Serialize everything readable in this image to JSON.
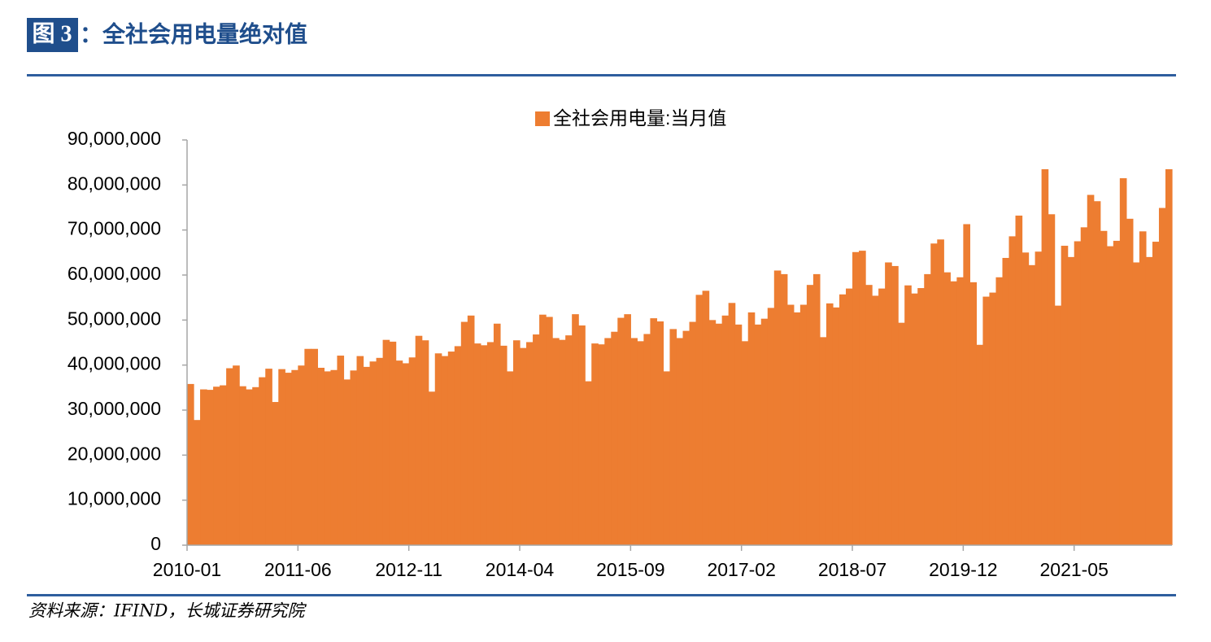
{
  "header": {
    "label": "图 3",
    "title": "：全社会用电量绝对值"
  },
  "chart_data": {
    "type": "bar",
    "categories": [
      "2010-01",
      null,
      null,
      null,
      null,
      null,
      null,
      null,
      null,
      null,
      null,
      null,
      null,
      null,
      null,
      null,
      null,
      "2011-06",
      null,
      null,
      null,
      null,
      null,
      null,
      null,
      null,
      null,
      null,
      null,
      null,
      null,
      null,
      null,
      null,
      "2012-11",
      null,
      null,
      null,
      null,
      null,
      null,
      null,
      null,
      null,
      null,
      null,
      null,
      null,
      null,
      null,
      null,
      "2014-04",
      null,
      null,
      null,
      null,
      null,
      null,
      null,
      null,
      null,
      null,
      null,
      null,
      null,
      null,
      null,
      null,
      "2015-09",
      null,
      null,
      null,
      null,
      null,
      null,
      null,
      null,
      null,
      null,
      null,
      null,
      null,
      null,
      null,
      null,
      "2017-02",
      null,
      null,
      null,
      null,
      null,
      null,
      null,
      null,
      null,
      null,
      null,
      null,
      null,
      null,
      null,
      null,
      "2018-07",
      null,
      null,
      null,
      null,
      null,
      null,
      null,
      null,
      null,
      null,
      null,
      null,
      null,
      null,
      null,
      null,
      "2019-12",
      null,
      null,
      null,
      null,
      null,
      null,
      null,
      null,
      null,
      null,
      null,
      null,
      null,
      null,
      null,
      null,
      "2021-05",
      null,
      null,
      null,
      null,
      null,
      null,
      null,
      null,
      null,
      null,
      null,
      null,
      null,
      null
    ],
    "series": [
      {
        "name": "全社会用电量:当月值",
        "color": "#ED7D31",
        "values": [
          35800000,
          27800000,
          34600000,
          34500000,
          35200000,
          35500000,
          39300000,
          39900000,
          35300000,
          34600000,
          35100000,
          37300000,
          39200000,
          31800000,
          39100000,
          38300000,
          38900000,
          39900000,
          43600000,
          43600000,
          39400000,
          38600000,
          38900000,
          42100000,
          36800000,
          38800000,
          42000000,
          39600000,
          40800000,
          41600000,
          45600000,
          45200000,
          41000000,
          40400000,
          41700000,
          46500000,
          45500000,
          34100000,
          42600000,
          42000000,
          43000000,
          44200000,
          49600000,
          51000000,
          44800000,
          44400000,
          45100000,
          49200000,
          44300000,
          38600000,
          45500000,
          43800000,
          45100000,
          46800000,
          51200000,
          50700000,
          46000000,
          45600000,
          46600000,
          51300000,
          48800000,
          36400000,
          44800000,
          44600000,
          46000000,
          47400000,
          50500000,
          51300000,
          46000000,
          45300000,
          46900000,
          50400000,
          49700000,
          38600000,
          48000000,
          46000000,
          47600000,
          49600000,
          55600000,
          56500000,
          50000000,
          49200000,
          51000000,
          53800000,
          49000000,
          45300000,
          51700000,
          49000000,
          50300000,
          52700000,
          61000000,
          60200000,
          53400000,
          51700000,
          53400000,
          57800000,
          60200000,
          46200000,
          53700000,
          52800000,
          55700000,
          57000000,
          65100000,
          65400000,
          57800000,
          55400000,
          57000000,
          62800000,
          62000000,
          49400000,
          57700000,
          55900000,
          57100000,
          60200000,
          67000000,
          67900000,
          60600000,
          58600000,
          59500000,
          71300000,
          58400000,
          44500000,
          55200000,
          56100000,
          59500000,
          63800000,
          68600000,
          73200000,
          65000000,
          62200000,
          65200000,
          83500000,
          73500000,
          53200000,
          66500000,
          64000000,
          67500000,
          70600000,
          77800000,
          76400000,
          69800000,
          66400000,
          67600000,
          81500000,
          72500000,
          62800000,
          69700000,
          64000000,
          67400000,
          74900000,
          83500000
        ]
      }
    ],
    "ylim": [
      0,
      90000000
    ],
    "yticks": [
      0,
      {
        "value": 10000000,
        "label": "10,000,000"
      },
      {
        "value": 20000000,
        "label": "20,000,000"
      },
      {
        "value": 30000000,
        "label": "30,000,000"
      },
      {
        "value": 40000000,
        "label": "40,000,000"
      },
      {
        "value": 50000000,
        "label": "50,000,000"
      },
      {
        "value": 60000000,
        "label": "60,000,000"
      },
      {
        "value": 70000000,
        "label": "70,000,000"
      },
      {
        "value": 80000000,
        "label": "80,000,000"
      },
      {
        "value": 90000000,
        "label": "90,000,000"
      }
    ],
    "legend": "top"
  },
  "source": "资料来源：IFIND，长城证券研究院"
}
